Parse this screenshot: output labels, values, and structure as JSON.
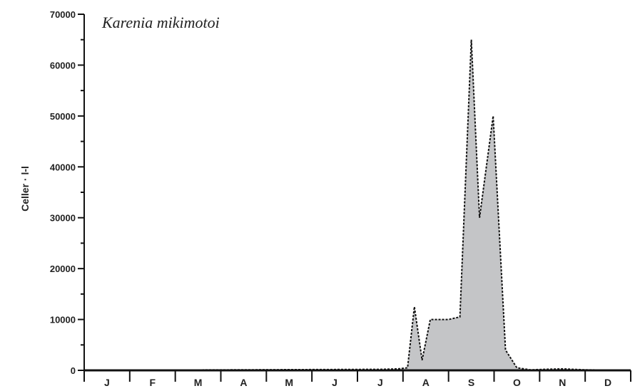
{
  "chart_data": {
    "type": "area",
    "title": "Karenia mikimotoi",
    "ylabel": "Celler · l-l",
    "xlabel": "",
    "ylim": [
      0,
      70000
    ],
    "yticks": [
      "0",
      "10000",
      "20000",
      "30000",
      "40000",
      "50000",
      "60000",
      "70000"
    ],
    "xlim": [
      0,
      12
    ],
    "months": [
      "J",
      "F",
      "M",
      "A",
      "M",
      "J",
      "J",
      "A",
      "S",
      "O",
      "N",
      "D"
    ],
    "grid": false,
    "fill_color": "#c4c5c7",
    "line_color": "#111111",
    "x": [
      0.0,
      6.5,
      6.9,
      7.1,
      7.25,
      7.42,
      7.6,
      7.75,
      8.0,
      8.25,
      8.5,
      8.68,
      8.98,
      9.25,
      9.5,
      9.8,
      10.1,
      10.5,
      11.0,
      12.0
    ],
    "y": [
      0,
      200,
      300,
      500,
      12500,
      2000,
      10000,
      10000,
      10000,
      10500,
      65000,
      30000,
      50000,
      4000,
      500,
      100,
      200,
      300,
      100,
      0
    ]
  }
}
